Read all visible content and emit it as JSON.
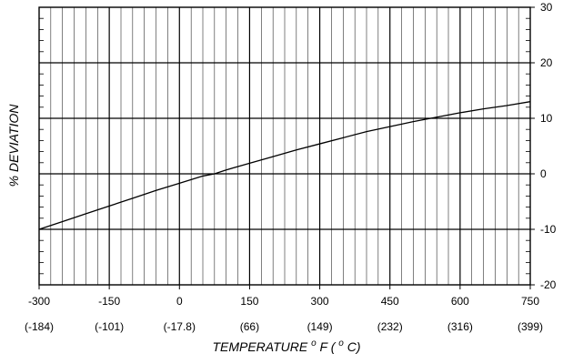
{
  "chart_data": {
    "type": "line",
    "title": "",
    "xlabel": "TEMPERATURE",
    "xlabel_units": {
      "f_prefix": "o",
      "f_unit": "F  (",
      "c_prefix": "o",
      "c_unit": "C)"
    },
    "ylabel": "% DEVIATION",
    "xlim": [
      -300,
      750
    ],
    "ylim": [
      -20,
      30
    ],
    "grid": true,
    "legend": "none",
    "x_ticks": [
      -300,
      -150,
      0,
      150,
      300,
      450,
      600,
      750
    ],
    "x_tick_labels": [
      "-300",
      "-150",
      "0",
      "150",
      "300",
      "450",
      "600",
      "750"
    ],
    "x_secondary_tick_labels": [
      "(-184)",
      "(-101)",
      "(-17.8)",
      "(66)",
      "(149)",
      "(232)",
      "(316)",
      "(399)"
    ],
    "y_ticks": [
      -20,
      -10,
      0,
      10,
      20,
      30
    ],
    "y_tick_labels": [
      "-20",
      "-10",
      "0",
      "10",
      "20",
      "30"
    ],
    "series": [
      {
        "x": [
          -300,
          -250,
          -200,
          -150,
          -100,
          -50,
          0,
          50,
          75,
          100,
          150,
          200,
          250,
          300,
          350,
          400,
          450,
          500,
          550,
          600,
          650,
          700,
          750
        ],
        "y": [
          -10,
          -8.6,
          -7.2,
          -5.8,
          -4.4,
          -3.0,
          -1.7,
          -0.4,
          0,
          0.7,
          1.9,
          3.1,
          4.3,
          5.4,
          6.5,
          7.6,
          8.5,
          9.4,
          10.2,
          11.0,
          11.7,
          12.3,
          13.0
        ]
      }
    ],
    "colors": {
      "line": "#000000",
      "grid": "#000000",
      "background": "#ffffff"
    }
  }
}
